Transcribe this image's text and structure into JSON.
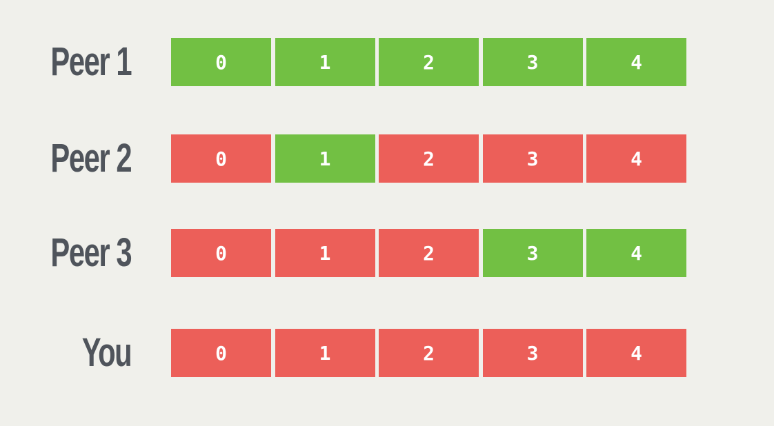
{
  "colors": {
    "background": "#f0f0eb",
    "have": "#72c043",
    "missing": "#ec5f59",
    "label": "#4f545b",
    "cell_text": "#ffffff"
  },
  "rows": [
    {
      "label": "Peer 1",
      "pieces": [
        {
          "index": "0",
          "status": "have"
        },
        {
          "index": "1",
          "status": "have"
        },
        {
          "index": "2",
          "status": "have"
        },
        {
          "index": "3",
          "status": "have"
        },
        {
          "index": "4",
          "status": "have"
        }
      ]
    },
    {
      "label": "Peer 2",
      "pieces": [
        {
          "index": "0",
          "status": "missing"
        },
        {
          "index": "1",
          "status": "have"
        },
        {
          "index": "2",
          "status": "missing"
        },
        {
          "index": "3",
          "status": "missing"
        },
        {
          "index": "4",
          "status": "missing"
        }
      ]
    },
    {
      "label": "Peer 3",
      "pieces": [
        {
          "index": "0",
          "status": "missing"
        },
        {
          "index": "1",
          "status": "missing"
        },
        {
          "index": "2",
          "status": "missing"
        },
        {
          "index": "3",
          "status": "have"
        },
        {
          "index": "4",
          "status": "have"
        }
      ]
    },
    {
      "label": "You",
      "pieces": [
        {
          "index": "0",
          "status": "missing"
        },
        {
          "index": "1",
          "status": "missing"
        },
        {
          "index": "2",
          "status": "missing"
        },
        {
          "index": "3",
          "status": "missing"
        },
        {
          "index": "4",
          "status": "missing"
        }
      ]
    }
  ]
}
